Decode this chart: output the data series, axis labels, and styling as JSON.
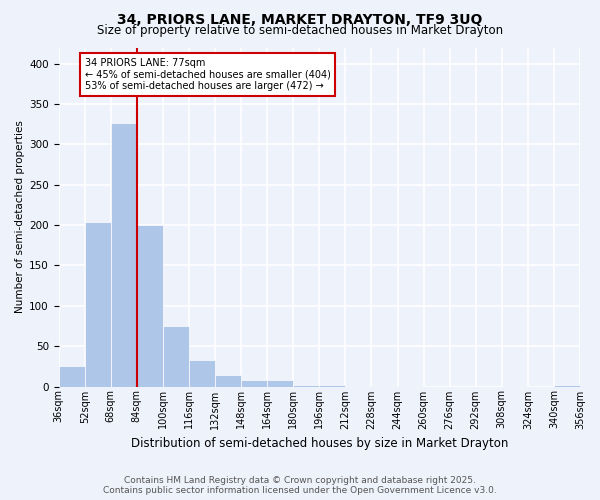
{
  "title": "34, PRIORS LANE, MARKET DRAYTON, TF9 3UQ",
  "subtitle": "Size of property relative to semi-detached houses in Market Drayton",
  "xlabel": "Distribution of semi-detached houses by size in Market Drayton",
  "ylabel": "Number of semi-detached properties",
  "bar_values": [
    26,
    204,
    327,
    200,
    75,
    33,
    14,
    8,
    8,
    2,
    2,
    1,
    1,
    1,
    0,
    0,
    0,
    1,
    0,
    2
  ],
  "categories": [
    "36sqm",
    "52sqm",
    "68sqm",
    "84sqm",
    "100sqm",
    "116sqm",
    "132sqm",
    "148sqm",
    "164sqm",
    "180sqm",
    "196sqm",
    "212sqm",
    "228sqm",
    "244sqm",
    "260sqm",
    "276sqm",
    "292sqm",
    "308sqm",
    "324sqm",
    "340sqm",
    "356sqm"
  ],
  "bar_color": "#aec6e8",
  "background_color": "#eef2fb",
  "grid_color": "#ffffff",
  "annotation_title": "34 PRIORS LANE: 77sqm",
  "annotation_line1": "← 45% of semi-detached houses are smaller (404)",
  "annotation_line2": "53% of semi-detached houses are larger (472) →",
  "annotation_box_color": "#ffffff",
  "annotation_box_edge": "#cc0000",
  "vline_color": "#cc0000",
  "vline_x": 2.5,
  "ylim": [
    0,
    420
  ],
  "yticks": [
    0,
    50,
    100,
    150,
    200,
    250,
    300,
    350,
    400
  ],
  "footer_line1": "Contains HM Land Registry data © Crown copyright and database right 2025.",
  "footer_line2": "Contains public sector information licensed under the Open Government Licence v3.0.",
  "title_fontsize": 10,
  "subtitle_fontsize": 8.5,
  "xlabel_fontsize": 8.5,
  "ylabel_fontsize": 7.5,
  "tick_fontsize": 7,
  "footer_fontsize": 6.5,
  "annotation_fontsize": 7
}
